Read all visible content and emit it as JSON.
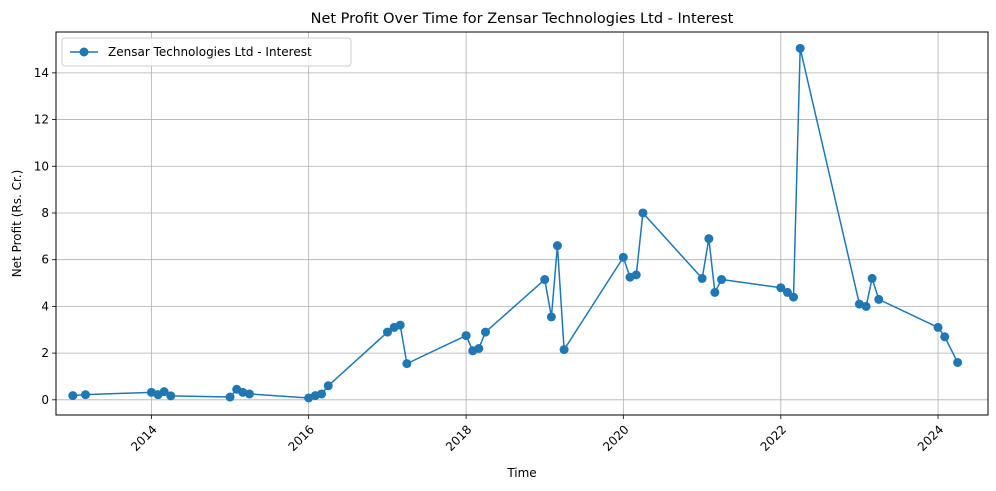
{
  "chart_data": {
    "type": "line",
    "title": "Net Profit Over Time for Zensar Technologies Ltd - Interest",
    "xlabel": "Time",
    "ylabel": "Net Profit (Rs. Cr.)",
    "xlim": [
      "2012-10-15",
      "2024-08-20"
    ],
    "ylim": [
      -0.65,
      15.75
    ],
    "x_ticks": [
      "2014",
      "2016",
      "2018",
      "2020",
      "2022",
      "2024"
    ],
    "y_ticks": [
      0,
      2,
      4,
      6,
      8,
      10,
      12,
      14
    ],
    "grid": true,
    "legend_position": "upper-left",
    "colors": {
      "series": "#1f77b4",
      "grid": "#b0b0b0"
    },
    "series": [
      {
        "name": "Zensar Technologies Ltd - Interest",
        "points": [
          [
            "2013-01-01",
            0.18
          ],
          [
            "2013-03-01",
            0.22
          ],
          [
            "2014-01-01",
            0.32
          ],
          [
            "2014-02-01",
            0.22
          ],
          [
            "2014-03-01",
            0.35
          ],
          [
            "2014-04-01",
            0.17
          ],
          [
            "2015-01-01",
            0.12
          ],
          [
            "2015-02-01",
            0.45
          ],
          [
            "2015-03-01",
            0.32
          ],
          [
            "2015-04-01",
            0.25
          ],
          [
            "2016-01-01",
            0.08
          ],
          [
            "2016-02-01",
            0.18
          ],
          [
            "2016-03-01",
            0.25
          ],
          [
            "2016-04-01",
            0.6
          ],
          [
            "2017-01-01",
            2.9
          ],
          [
            "2017-02-01",
            3.1
          ],
          [
            "2017-03-01",
            3.2
          ],
          [
            "2017-04-01",
            1.55
          ],
          [
            "2018-01-01",
            2.75
          ],
          [
            "2018-02-01",
            2.1
          ],
          [
            "2018-03-01",
            2.2
          ],
          [
            "2018-04-01",
            2.9
          ],
          [
            "2019-01-01",
            5.15
          ],
          [
            "2019-02-01",
            3.55
          ],
          [
            "2019-03-01",
            6.6
          ],
          [
            "2019-04-01",
            2.15
          ],
          [
            "2020-01-01",
            6.1
          ],
          [
            "2020-02-01",
            5.25
          ],
          [
            "2020-03-01",
            5.35
          ],
          [
            "2020-04-01",
            8.0
          ],
          [
            "2021-01-01",
            5.2
          ],
          [
            "2021-02-01",
            6.9
          ],
          [
            "2021-03-01",
            4.6
          ],
          [
            "2021-04-01",
            5.15
          ],
          [
            "2022-01-01",
            4.8
          ],
          [
            "2022-02-01",
            4.6
          ],
          [
            "2022-03-01",
            4.4
          ],
          [
            "2022-04-01",
            15.05
          ],
          [
            "2023-01-01",
            4.1
          ],
          [
            "2023-02-01",
            4.0
          ],
          [
            "2023-03-01",
            5.2
          ],
          [
            "2023-04-01",
            4.3
          ],
          [
            "2024-01-01",
            3.1
          ],
          [
            "2024-02-01",
            2.7
          ],
          [
            "2024-04-01",
            1.6
          ]
        ]
      }
    ]
  }
}
